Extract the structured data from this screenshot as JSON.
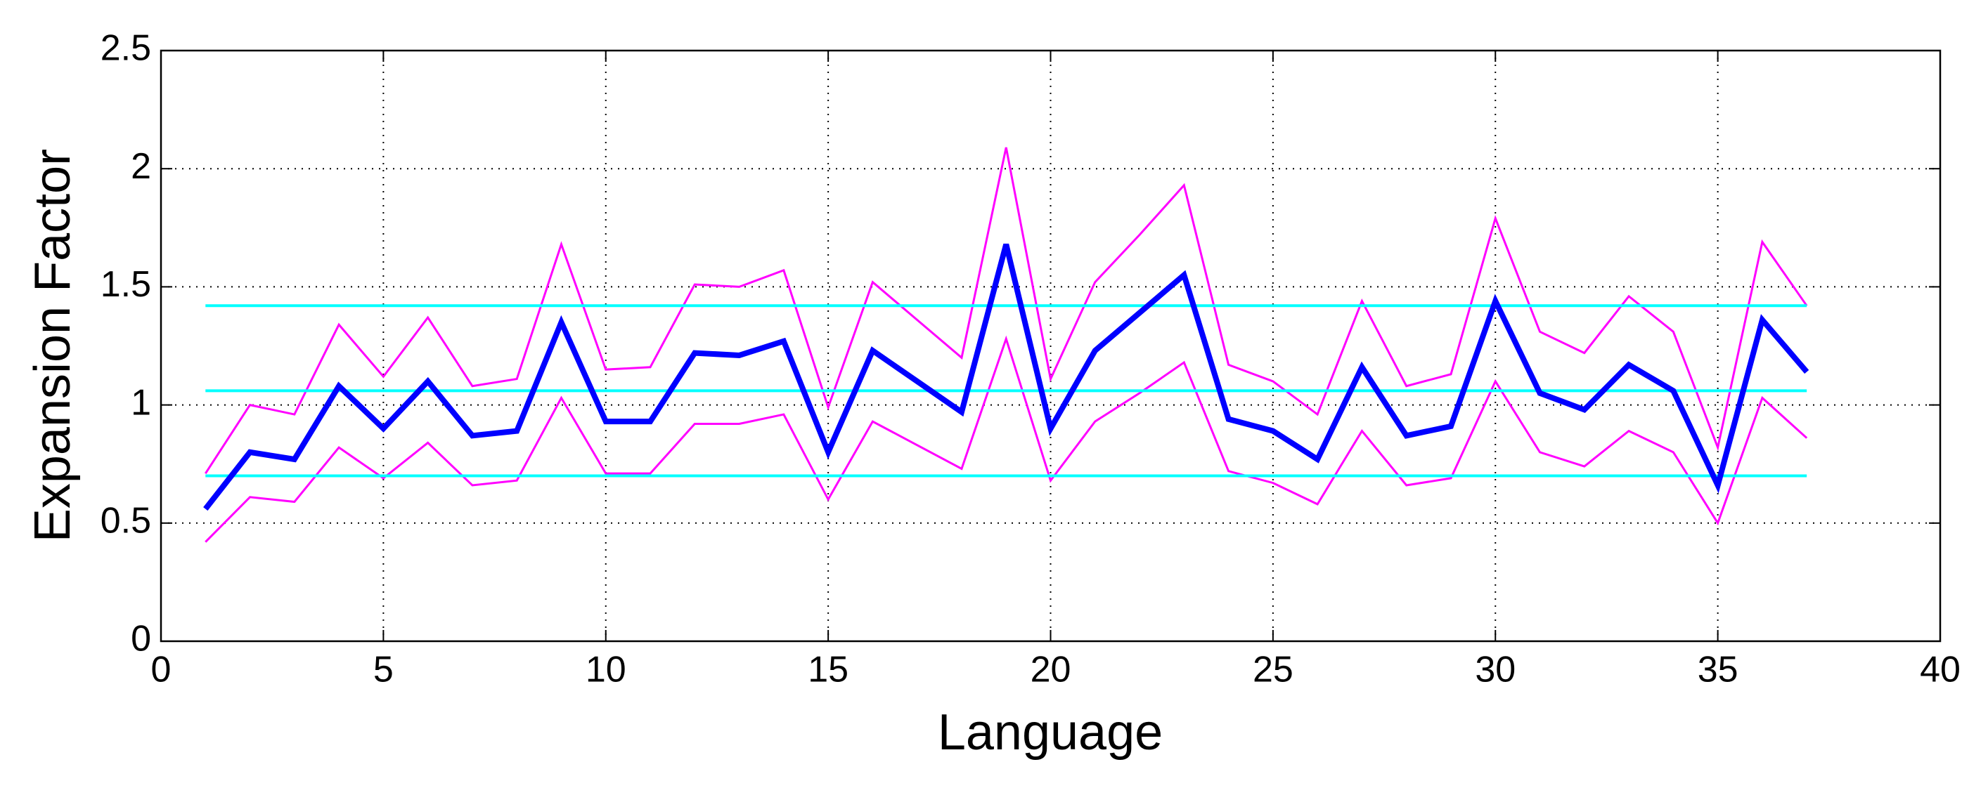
{
  "chart_data": {
    "type": "line",
    "x_label": "Language",
    "y_label": "Expansion Factor",
    "x": [
      1,
      2,
      3,
      4,
      5,
      6,
      7,
      8,
      9,
      10,
      11,
      12,
      13,
      14,
      15,
      16,
      17,
      18,
      19,
      20,
      21,
      22,
      23,
      24,
      25,
      26,
      27,
      28,
      29,
      30,
      31,
      32,
      33,
      34,
      35,
      36,
      37
    ],
    "series": [
      {
        "color": "#ff00ff",
        "width": 3,
        "values": [
          0.71,
          1.0,
          0.96,
          1.34,
          1.12,
          1.37,
          1.08,
          1.11,
          1.68,
          1.15,
          1.16,
          1.51,
          1.5,
          1.57,
          0.99,
          1.52,
          1.36,
          1.2,
          2.09,
          1.11,
          1.52,
          1.72,
          1.93,
          1.17,
          1.1,
          0.96,
          1.44,
          1.08,
          1.13,
          1.79,
          1.31,
          1.22,
          1.46,
          1.31,
          0.82,
          1.69,
          1.42
        ]
      },
      {
        "color": "#ff00ff",
        "width": 3,
        "values": [
          0.42,
          0.61,
          0.59,
          0.82,
          0.69,
          0.84,
          0.66,
          0.68,
          1.03,
          0.71,
          0.71,
          0.92,
          0.92,
          0.96,
          0.6,
          0.93,
          0.83,
          0.73,
          1.28,
          0.68,
          0.93,
          1.05,
          1.18,
          0.72,
          0.67,
          0.58,
          0.89,
          0.66,
          0.69,
          1.1,
          0.8,
          0.74,
          0.89,
          0.8,
          0.5,
          1.03,
          0.86
        ]
      },
      {
        "color": "#00ffff",
        "width": 4,
        "x": [
          1,
          37
        ],
        "values": [
          0.7,
          0.7
        ]
      },
      {
        "color": "#00ffff",
        "width": 4,
        "x": [
          1,
          37
        ],
        "values": [
          1.06,
          1.06
        ]
      },
      {
        "color": "#00ffff",
        "width": 4,
        "x": [
          1,
          37
        ],
        "values": [
          1.42,
          1.42
        ]
      },
      {
        "color": "#0000ff",
        "width": 8,
        "values": [
          0.56,
          0.8,
          0.77,
          1.08,
          0.9,
          1.1,
          0.87,
          0.89,
          1.35,
          0.93,
          0.93,
          1.22,
          1.21,
          1.27,
          0.8,
          1.23,
          1.1,
          0.97,
          1.68,
          0.9,
          1.23,
          1.39,
          1.55,
          0.94,
          0.89,
          0.77,
          1.16,
          0.87,
          0.91,
          1.44,
          1.05,
          0.98,
          1.17,
          1.06,
          0.66,
          1.36,
          1.14
        ]
      }
    ],
    "xlim": [
      0,
      40
    ],
    "ylim": [
      0,
      2.5
    ],
    "xticks": [
      0,
      5,
      10,
      15,
      20,
      25,
      30,
      35,
      40
    ],
    "yticks": [
      0,
      0.5,
      1,
      1.5,
      2,
      2.5
    ],
    "grid": true
  }
}
